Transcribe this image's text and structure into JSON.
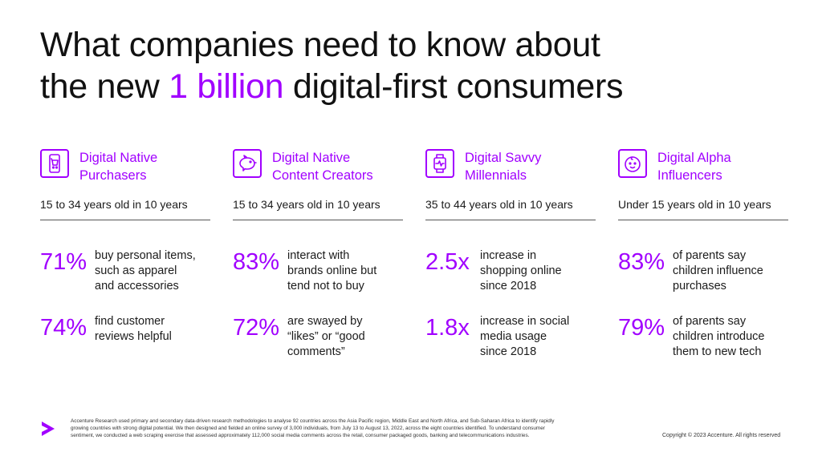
{
  "title": {
    "line1": "What companies need to know about",
    "line2_pre": "the new ",
    "line2_highlight": "1 billion",
    "line2_post": " digital-first consumers"
  },
  "accent_color": "#a100ff",
  "columns": [
    {
      "icon": "shopping-phone-icon",
      "category_line1": "Digital Native",
      "category_line2": "Purchasers",
      "age": "15 to 34 years old in 10 years",
      "stats": [
        {
          "value": "71%",
          "desc_lines": [
            "buy personal items,",
            "such as apparel",
            "and accessories"
          ]
        },
        {
          "value": "74%",
          "desc_lines": [
            "find customer",
            "reviews helpful"
          ]
        }
      ]
    },
    {
      "icon": "piggy-bank-icon",
      "category_line1": "Digital Native",
      "category_line2": "Content Creators",
      "age": "15 to 34 years old in 10 years",
      "stats": [
        {
          "value": "83%",
          "desc_lines": [
            "interact with",
            "brands online but",
            "tend not to buy"
          ]
        },
        {
          "value": "72%",
          "desc_lines": [
            "are swayed by",
            "“likes” or “good",
            "comments”"
          ]
        }
      ]
    },
    {
      "icon": "smartwatch-icon",
      "category_line1": "Digital Savvy",
      "category_line2": "Millennials",
      "age": "35 to 44 years old in 10 years",
      "stats": [
        {
          "value": "2.5x",
          "desc_lines": [
            "increase in",
            "shopping online",
            "since 2018"
          ]
        },
        {
          "value": "1.8x",
          "desc_lines": [
            "increase in social",
            "media usage",
            "since 2018"
          ]
        }
      ]
    },
    {
      "icon": "baby-face-icon",
      "category_line1": "Digital Alpha",
      "category_line2": "Influencers",
      "age": "Under 15 years old in 10 years",
      "stats": [
        {
          "value": "83%",
          "desc_lines": [
            "of parents say",
            "children influence",
            "purchases"
          ]
        },
        {
          "value": "79%",
          "desc_lines": [
            "of parents say",
            "children introduce",
            "them to new tech"
          ]
        }
      ]
    }
  ],
  "footer": {
    "line1": "Accenture Research used primary and secondary data-driven research methodologies to analyse 92 countries across the Asia Pacific region, Middle East and North Africa, and Sub-Saharan Africa to identify rapidly",
    "line2": "growing countries with strong digital potential. We then designed and fielded an online survey of 3,000 individuals, from July 13 to August 13, 2022, across the eight countries identified. To understand consumer",
    "line3": "sentiment, we conducted a web scraping exercise that assessed approximately 112,000 social media comments across the retail, consumer packaged goods, banking and telecommunications industries.",
    "copyright": "Copyright © 2023 Accenture. All rights reserved"
  }
}
